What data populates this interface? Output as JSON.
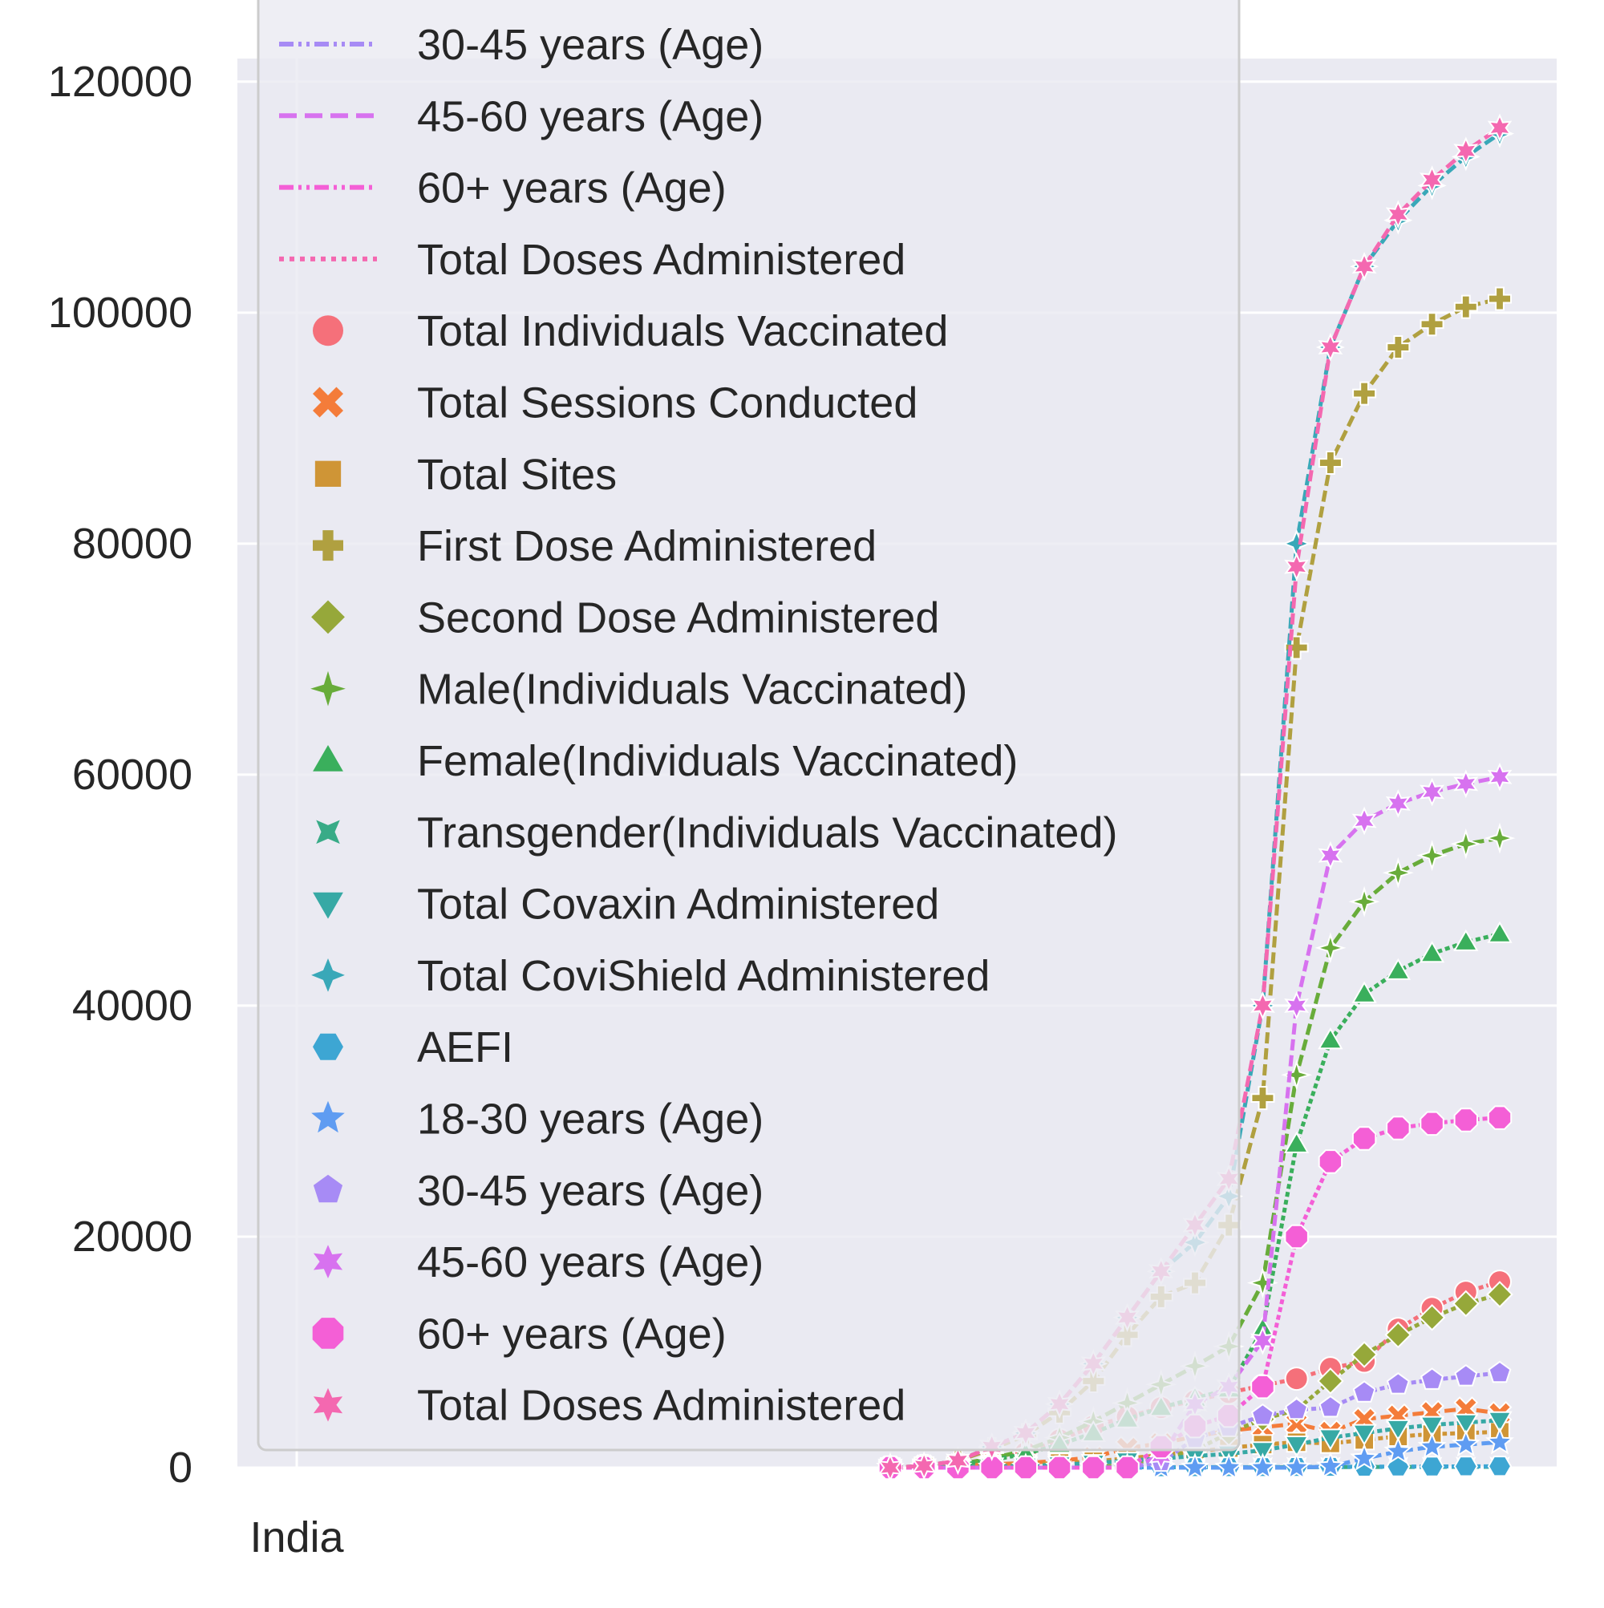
{
  "chart_data": {
    "type": "line",
    "title": "",
    "xlabel": "",
    "ylabel": "",
    "x_tick_labels": [
      "India"
    ],
    "y_ticks": [
      0,
      20000,
      40000,
      60000,
      80000,
      100000,
      120000
    ],
    "ylim": [
      0,
      122000
    ],
    "grid": true,
    "legend_placement": "upper-left",
    "legend_line_entries": [
      {
        "name": "30-45 years (Age)",
        "color": "#a78bf5",
        "style": "dash-dot-dot"
      },
      {
        "name": "45-60 years (Age)",
        "color": "#d772ef",
        "style": "dashed"
      },
      {
        "name": "60+ years (Age)",
        "color": "#f45fd6",
        "style": "dash-dot-dot"
      },
      {
        "name": "Total Doses Administered",
        "color": "#f468b0",
        "style": "dotted"
      }
    ],
    "series": [
      {
        "name": "Total Individuals Vaccinated",
        "color": "#f5707a",
        "marker": "circle",
        "values": [
          0,
          50,
          250,
          700,
          1300,
          2400,
          3600,
          4400,
          5200,
          5800,
          6500,
          7100,
          7700,
          8600,
          9200,
          12000,
          13800,
          15200,
          16100
        ]
      },
      {
        "name": "Total Sessions Conducted",
        "color": "#f47c3a",
        "marker": "x",
        "values": [
          0,
          100,
          200,
          300,
          400,
          600,
          900,
          1700,
          2100,
          2700,
          3200,
          3500,
          3800,
          3100,
          4200,
          4500,
          4800,
          5100,
          4700
        ]
      },
      {
        "name": "Total Sites",
        "color": "#cf9536",
        "marker": "square",
        "values": [
          0,
          80,
          150,
          230,
          300,
          400,
          550,
          800,
          1100,
          1400,
          1700,
          2000,
          2200,
          2100,
          2400,
          2700,
          2900,
          3000,
          3100
        ]
      },
      {
        "name": "First Dose Administered",
        "color": "#b0a040",
        "marker": "plus",
        "values": [
          0,
          150,
          600,
          1600,
          2800,
          4800,
          7500,
          11500,
          14800,
          16000,
          21000,
          32000,
          71000,
          87000,
          93000,
          97000,
          99000,
          100500,
          101200
        ]
      },
      {
        "name": "Second Dose Administered",
        "color": "#96a83a",
        "marker": "diamond",
        "values": [
          0,
          0,
          0,
          0,
          0,
          0,
          0,
          300,
          800,
          1500,
          3000,
          4200,
          5000,
          7500,
          9800,
          11500,
          13000,
          14200,
          15000
        ]
      },
      {
        "name": "Male(Individuals Vaccinated)",
        "color": "#68ac3a",
        "marker": "plus4",
        "values": [
          0,
          80,
          300,
          800,
          1500,
          2600,
          4000,
          5600,
          7200,
          8800,
          10500,
          16000,
          34000,
          45000,
          49000,
          51500,
          53000,
          54000,
          54500
        ]
      },
      {
        "name": "Female(Individuals Vaccinated)",
        "color": "#3aaf5c",
        "marker": "triangle-up",
        "values": [
          0,
          60,
          250,
          650,
          1200,
          2000,
          3000,
          4200,
          5200,
          6000,
          6800,
          12000,
          28000,
          37000,
          41000,
          43000,
          44500,
          45500,
          46200
        ]
      },
      {
        "name": "Transgender(Individuals Vaccinated)",
        "color": "#38ab87",
        "marker": "x4",
        "values": [
          0,
          0,
          0,
          0,
          0,
          0,
          5,
          10,
          15,
          20,
          25,
          30,
          40,
          50,
          55,
          60,
          65,
          70,
          75
        ]
      },
      {
        "name": "Total Covaxin Administered",
        "color": "#37a9a5",
        "marker": "triangle-down",
        "values": [
          0,
          20,
          50,
          100,
          150,
          250,
          400,
          600,
          800,
          1000,
          1200,
          1500,
          2000,
          2600,
          3000,
          3400,
          3700,
          3900,
          4100
        ]
      },
      {
        "name": "Total CoviShield Administered",
        "color": "#39a8b8",
        "marker": "star4",
        "values": [
          0,
          140,
          600,
          1800,
          3000,
          5500,
          9000,
          13000,
          17000,
          19500,
          23500,
          40000,
          80000,
          97000,
          104000,
          108000,
          111000,
          113500,
          115500
        ]
      },
      {
        "name": "AEFI",
        "color": "#3da6d3",
        "marker": "hexagon",
        "values": [
          0,
          0,
          5,
          10,
          15,
          20,
          25,
          30,
          35,
          40,
          45,
          50,
          60,
          70,
          80,
          90,
          100,
          110,
          120
        ]
      },
      {
        "name": "18-30 years (Age)",
        "color": "#5f9cf2",
        "marker": "star",
        "values": [
          0,
          0,
          0,
          0,
          0,
          0,
          0,
          0,
          0,
          0,
          0,
          0,
          0,
          100,
          800,
          1400,
          1800,
          2000,
          2200
        ]
      },
      {
        "name": "30-45 years (Age)",
        "color": "#a78bf5",
        "marker": "pentagon",
        "values": [
          0,
          0,
          0,
          0,
          0,
          0,
          0,
          0,
          500,
          2500,
          3500,
          4500,
          5000,
          5200,
          6500,
          7200,
          7600,
          7900,
          8200
        ]
      },
      {
        "name": "45-60 years (Age)",
        "color": "#d772ef",
        "marker": "star6",
        "values": [
          0,
          0,
          0,
          0,
          0,
          0,
          0,
          0,
          1000,
          5500,
          7000,
          11000,
          40000,
          53000,
          56000,
          57500,
          58500,
          59200,
          59800
        ]
      },
      {
        "name": "60+ years (Age)",
        "color": "#f45fd6",
        "marker": "octagon",
        "values": [
          0,
          0,
          0,
          0,
          0,
          0,
          0,
          0,
          1800,
          3600,
          4500,
          7000,
          20000,
          26500,
          28500,
          29400,
          29800,
          30100,
          30300
        ]
      },
      {
        "name": "Total Doses Administered",
        "color": "#f468b0",
        "marker": "star6",
        "values": [
          0,
          150,
          600,
          1800,
          3000,
          5500,
          9000,
          13000,
          17000,
          21000,
          25000,
          40000,
          78000,
          97000,
          104000,
          108500,
          111500,
          114000,
          116000
        ]
      }
    ]
  }
}
